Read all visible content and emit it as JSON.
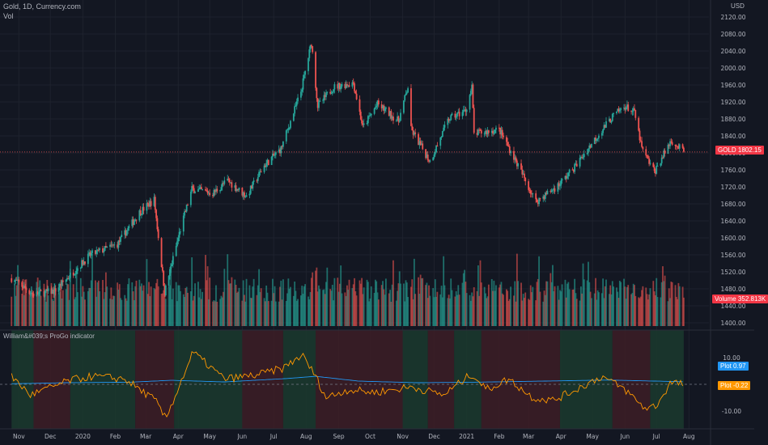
{
  "header": {
    "symbol": "Gold, 1D, Currency.com",
    "volume_label": "Vol",
    "currency": "USD",
    "indicator_name": "William&#039;s ProGo indicator"
  },
  "price_tag": {
    "label": "GOLD",
    "value": "1802.15",
    "color": "#f23645"
  },
  "volume_tag": {
    "label": "Volume",
    "value": "352.813K",
    "color": "#f23645"
  },
  "plot_tags": [
    {
      "label": "Plot",
      "value": "0.97",
      "color": "#2196f3"
    },
    {
      "label": "Plot",
      "value": "-0.22",
      "color": "#ff9800"
    }
  ],
  "colors": {
    "up": "#26a69a",
    "down": "#ef5350",
    "background": "#131722",
    "grid": "#1e222d",
    "bull_zone": "#1b3a2e",
    "bear_zone": "#3d1d26",
    "progo_open": "#2196f3",
    "progo_close": "#ff9800"
  },
  "chart_data": [
    {
      "type": "line",
      "title": "Gold, 1D, Currency.com",
      "series_label": "GOLD",
      "last_value": 1802.15,
      "y_scale": "linear",
      "y_ticks": [
        1400,
        1440,
        1480,
        1520,
        1560,
        1600,
        1640,
        1680,
        1720,
        1760,
        1800,
        1840,
        1880,
        1920,
        1960,
        2000,
        2040,
        2080,
        2120
      ],
      "y_tick_labels": [
        "1400.00",
        "1440.00",
        "1480.00",
        "1520.00",
        "1560.00",
        "1600.00",
        "1640.00",
        "1680.00",
        "1720.00",
        "1760.00",
        "1800.00",
        "1840.00",
        "1880.00",
        "1920.00",
        "1960.00",
        "2000.00",
        "2040.00",
        "2080.00",
        "2120.00"
      ],
      "x_tick_labels": [
        "Nov",
        "Dec",
        "2020",
        "Feb",
        "Mar",
        "Apr",
        "May",
        "Jun",
        "Jul",
        "Aug",
        "Sep",
        "Oct",
        "Nov",
        "Dec",
        "2021",
        "Feb",
        "Mar",
        "Apr",
        "May",
        "Jun",
        "Jul",
        "Aug"
      ],
      "x": [
        "2019-10-25",
        "2019-11-15",
        "2019-12-05",
        "2020-01-08",
        "2020-02-03",
        "2020-02-24",
        "2020-03-09",
        "2020-03-19",
        "2020-04-03",
        "2020-04-14",
        "2020-05-04",
        "2020-05-18",
        "2020-06-05",
        "2020-06-22",
        "2020-07-08",
        "2020-07-27",
        "2020-08-06",
        "2020-08-12",
        "2020-08-27",
        "2020-09-15",
        "2020-09-24",
        "2020-10-08",
        "2020-10-28",
        "2020-11-06",
        "2020-11-09",
        "2020-11-27",
        "2020-12-15",
        "2020-12-31",
        "2021-01-06",
        "2021-01-08",
        "2021-02-01",
        "2021-02-15",
        "2021-03-08",
        "2021-03-30",
        "2021-04-15",
        "2021-05-04",
        "2021-05-20",
        "2021-06-01",
        "2021-06-10",
        "2021-06-17",
        "2021-06-29",
        "2021-07-15",
        "2021-07-27"
      ],
      "values": [
        1505,
        1467,
        1475,
        1560,
        1585,
        1660,
        1690,
        1472,
        1620,
        1715,
        1705,
        1735,
        1698,
        1770,
        1810,
        1945,
        2060,
        1910,
        1955,
        1965,
        1860,
        1915,
        1875,
        1955,
        1855,
        1780,
        1880,
        1900,
        1955,
        1845,
        1855,
        1790,
        1685,
        1725,
        1770,
        1835,
        1885,
        1910,
        1895,
        1810,
        1755,
        1830,
        1802
      ]
    },
    {
      "type": "bar",
      "series_label": "Volume",
      "last_value": "352.813K",
      "color_by": "price direction"
    },
    {
      "type": "line",
      "title": "William&#039;s ProGo indicator",
      "y_ticks": [
        10,
        -10
      ],
      "y_tick_labels": [
        "10.00",
        "-10.00"
      ],
      "zero_line": true,
      "series": [
        {
          "label": "Plot",
          "color": "#2196f3",
          "last_value": 0.97,
          "x": [
            "2019-10-25",
            "2019-12-15",
            "2020-02-15",
            "2020-03-25",
            "2020-05-15",
            "2020-07-15",
            "2020-08-10",
            "2020-09-20",
            "2020-11-15",
            "2021-01-10",
            "2021-03-15",
            "2021-05-15",
            "2021-07-27"
          ],
          "values": [
            0.2,
            0.6,
            0.8,
            1.5,
            0.9,
            2.2,
            3.0,
            1.2,
            0.6,
            0.8,
            1.2,
            1.6,
            0.97
          ]
        },
        {
          "label": "Plot",
          "color": "#ff9800",
          "last_value": -0.22,
          "x": [
            "2019-10-25",
            "2019-11-12",
            "2019-12-20",
            "2020-01-10",
            "2020-02-10",
            "2020-03-10",
            "2020-03-20",
            "2020-04-15",
            "2020-05-15",
            "2020-06-15",
            "2020-07-10",
            "2020-07-28",
            "2020-08-10",
            "2020-08-20",
            "2020-09-10",
            "2020-10-05",
            "2020-11-10",
            "2020-12-10",
            "2021-01-06",
            "2021-01-20",
            "2021-02-10",
            "2021-03-05",
            "2021-03-25",
            "2021-04-20",
            "2021-05-10",
            "2021-06-01",
            "2021-06-20",
            "2021-07-01",
            "2021-07-15",
            "2021-07-27"
          ],
          "values": [
            3,
            -4,
            1.5,
            3,
            2,
            -6,
            -13,
            12,
            2,
            3.5,
            6,
            11,
            3,
            -5,
            -2,
            -3,
            -1,
            -4,
            4,
            -2,
            2,
            -5,
            -6,
            -1,
            3,
            -2,
            -9,
            -8,
            1,
            -0.22
          ]
        }
      ],
      "zone_pattern": [
        {
          "from": "2019-10-25",
          "to": "2019-11-15",
          "sign": "bull"
        },
        {
          "from": "2019-11-15",
          "to": "2019-12-20",
          "sign": "bear"
        },
        {
          "from": "2019-12-20",
          "to": "2020-02-20",
          "sign": "bull"
        },
        {
          "from": "2020-02-20",
          "to": "2020-03-28",
          "sign": "bear"
        },
        {
          "from": "2020-03-28",
          "to": "2020-06-01",
          "sign": "bull"
        },
        {
          "from": "2020-06-01",
          "to": "2020-07-10",
          "sign": "bear"
        },
        {
          "from": "2020-07-10",
          "to": "2020-08-10",
          "sign": "bull"
        },
        {
          "from": "2020-08-10",
          "to": "2020-11-01",
          "sign": "bear"
        },
        {
          "from": "2020-11-01",
          "to": "2020-11-25",
          "sign": "bull"
        },
        {
          "from": "2020-11-25",
          "to": "2020-12-20",
          "sign": "bear"
        },
        {
          "from": "2020-12-20",
          "to": "2021-01-15",
          "sign": "bull"
        },
        {
          "from": "2021-01-15",
          "to": "2021-03-31",
          "sign": "bear"
        },
        {
          "from": "2021-03-31",
          "to": "2021-05-20",
          "sign": "bull"
        },
        {
          "from": "2021-05-20",
          "to": "2021-06-25",
          "sign": "bear"
        },
        {
          "from": "2021-06-25",
          "to": "2021-07-27",
          "sign": "bull"
        }
      ]
    }
  ]
}
